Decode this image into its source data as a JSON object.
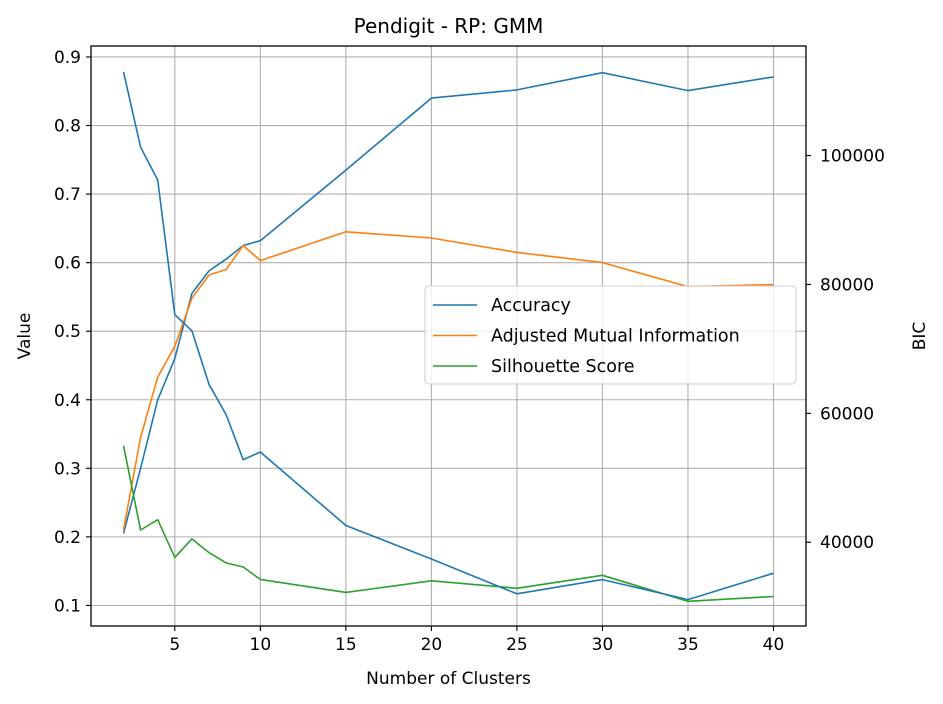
{
  "chart_data": {
    "type": "line",
    "title": "Pendigit - RP: GMM",
    "xlabel": "Number of Clusters",
    "ylabel": "Value",
    "y2label": "BIC",
    "xlim": [
      0.1,
      41.9
    ],
    "ylim": [
      0.07,
      0.916
    ],
    "y2lim": [
      27000,
      117000
    ],
    "grid": true,
    "legend_position": "center-right",
    "xticks": [
      5,
      10,
      15,
      20,
      25,
      30,
      35,
      40
    ],
    "yticks": [
      0.1,
      0.2,
      0.3,
      0.4,
      0.5,
      0.6,
      0.7,
      0.8,
      0.9
    ],
    "y2ticks": [
      40000,
      60000,
      80000,
      100000
    ],
    "xtick_labels": [
      "5",
      "10",
      "15",
      "20",
      "25",
      "30",
      "35",
      "40"
    ],
    "ytick_labels": [
      "0.1",
      "0.2",
      "0.3",
      "0.4",
      "0.5",
      "0.6",
      "0.7",
      "0.8",
      "0.9"
    ],
    "y2tick_labels": [
      "40000",
      "60000",
      "80000",
      "100000"
    ],
    "x": [
      2,
      3,
      4,
      5,
      6,
      7,
      8,
      9,
      10,
      15,
      20,
      25,
      30,
      35,
      40
    ],
    "series": [
      {
        "name": "Accuracy",
        "color": "#1f77b4",
        "axis": "left",
        "values": [
          0.205,
          0.3,
          0.4,
          0.46,
          0.555,
          0.588,
          0.605,
          0.625,
          0.632,
          0.735,
          0.84,
          0.852,
          0.877,
          0.851,
          0.871
        ],
        "in_legend": true
      },
      {
        "name": "Adjusted Mutual Information",
        "color": "#ff7f0e",
        "axis": "left",
        "values": [
          0.21,
          0.345,
          0.433,
          0.478,
          0.548,
          0.582,
          0.59,
          0.625,
          0.603,
          0.645,
          0.636,
          0.615,
          0.6,
          0.565,
          0.568
        ],
        "in_legend": true
      },
      {
        "name": "Silhouette Score",
        "color": "#2ca02c",
        "axis": "left",
        "values": [
          0.333,
          0.21,
          0.225,
          0.17,
          0.197,
          0.177,
          0.162,
          0.156,
          0.138,
          0.119,
          0.136,
          0.125,
          0.144,
          0.106,
          0.113
        ],
        "in_legend": true
      },
      {
        "color": "#1f77b4",
        "axis": "right",
        "values": [
          113000,
          101300,
          96200,
          75300,
          72800,
          64500,
          59800,
          52800,
          54000,
          42600,
          37400,
          32000,
          34200,
          31100,
          35200
        ],
        "in_legend": false
      }
    ]
  }
}
